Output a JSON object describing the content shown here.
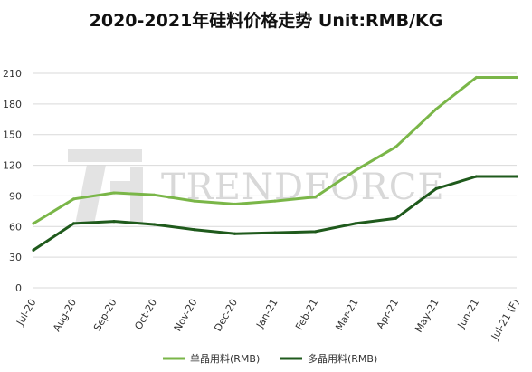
{
  "chart_data": {
    "type": "line",
    "title": "2020-2021年硅料价格走势 Unit:RMB/KG",
    "xlabel": "",
    "ylabel": "",
    "categories": [
      "Jul-20",
      "Aug-20",
      "Sep-20",
      "Oct-20",
      "Nov-20",
      "Dec-20",
      "Jan-21",
      "Feb-21",
      "Mar-21",
      "Apr-21",
      "May-21",
      "Jun-21",
      "Jul-21 (F)"
    ],
    "ylim": [
      0,
      210
    ],
    "yticks": [
      0,
      30,
      60,
      90,
      120,
      150,
      180,
      210
    ],
    "grid": true,
    "legend_position": "bottom",
    "series": [
      {
        "name": "单晶用料(RMB)",
        "color": "#7ab648",
        "values": [
          63,
          87,
          93,
          91,
          85,
          82,
          85,
          89,
          115,
          138,
          175,
          206,
          206
        ]
      },
      {
        "name": "多晶用料(RMB)",
        "color": "#1f5a1c",
        "values": [
          37,
          63,
          65,
          62,
          57,
          53,
          54,
          55,
          63,
          68,
          97,
          109,
          109
        ]
      }
    ]
  },
  "watermark": {
    "text": "TRENDFORCE",
    "color": "#d8d8d8"
  }
}
